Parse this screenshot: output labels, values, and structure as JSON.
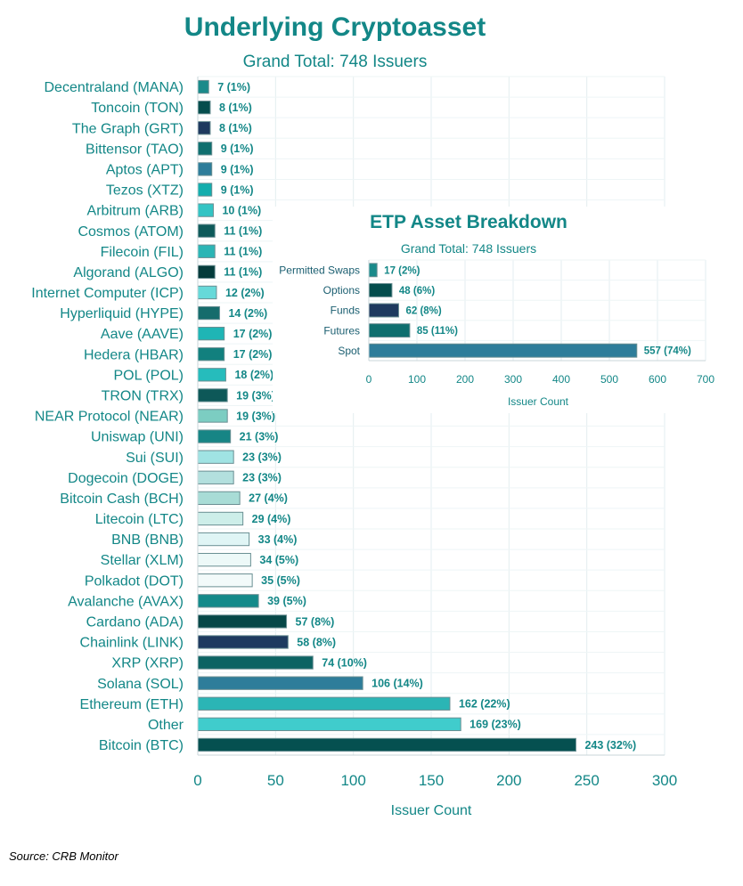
{
  "source": "Source: CRB  Monitor",
  "chart_data": [
    {
      "type": "bar",
      "orientation": "horizontal",
      "title": "Underlying Cryptoasset",
      "subtitle": "Grand Total: 748 Issuers",
      "xlabel": "Issuer Count",
      "ylabel": "",
      "xlim": [
        0,
        300
      ],
      "xticks": [
        0,
        50,
        100,
        150,
        200,
        250,
        300
      ],
      "grid": true,
      "categories": [
        "Decentraland (MANA)",
        "Toncoin (TON)",
        "The Graph (GRT)",
        "Bittensor (TAO)",
        "Aptos (APT)",
        "Tezos (XTZ)",
        "Arbitrum (ARB)",
        "Cosmos (ATOM)",
        "Filecoin (FIL)",
        "Algorand (ALGO)",
        "Internet Computer (ICP)",
        "Hyperliquid (HYPE)",
        "Aave (AAVE)",
        "Hedera (HBAR)",
        "POL (POL)",
        "TRON (TRX)",
        "NEAR Protocol (NEAR)",
        "Uniswap (UNI)",
        "Sui (SUI)",
        "Dogecoin (DOGE)",
        "Bitcoin Cash (BCH)",
        "Litecoin (LTC)",
        "BNB (BNB)",
        "Stellar (XLM)",
        "Polkadot (DOT)",
        "Avalanche (AVAX)",
        "Cardano (ADA)",
        "Chainlink (LINK)",
        "XRP (XRP)",
        "Solana (SOL)",
        "Ethereum (ETH)",
        "Other",
        "Bitcoin (BTC)"
      ],
      "values": [
        7,
        8,
        8,
        9,
        9,
        9,
        10,
        11,
        11,
        11,
        12,
        14,
        17,
        17,
        18,
        19,
        19,
        21,
        23,
        23,
        27,
        29,
        33,
        34,
        35,
        39,
        57,
        58,
        74,
        106,
        162,
        169,
        243
      ],
      "data_labels": [
        "7 (1%)",
        "8 (1%)",
        "8 (1%)",
        "9 (1%)",
        "9 (1%)",
        "9 (1%)",
        "10 (1%)",
        "11 (1%)",
        "11 (1%)",
        "11 (1%)",
        "12 (2%)",
        "14 (2%)",
        "17 (2%)",
        "17 (2%)",
        "18 (2%)",
        "19 (3%)",
        "19 (3%)",
        "21 (3%)",
        "23 (3%)",
        "23 (3%)",
        "27 (4%)",
        "29 (4%)",
        "33 (4%)",
        "34 (5%)",
        "35 (5%)",
        "39 (5%)",
        "57 (8%)",
        "58 (8%)",
        "74 (10%)",
        "106 (14%)",
        "162 (22%)",
        "169 (23%)",
        "243 (32%)"
      ],
      "colors": [
        "#1a8a8a",
        "#044d4d",
        "#1e3a5f",
        "#0f6f6f",
        "#2e7d9a",
        "#13adad",
        "#33c4c4",
        "#0e5a5a",
        "#2bb5b5",
        "#043b3b",
        "#66d9d9",
        "#166c6c",
        "#1fb5b5",
        "#12807e",
        "#26bcbc",
        "#0d5858",
        "#7ccdc2",
        "#178585",
        "#a0e3e3",
        "#b3e0de",
        "#a8dcd6",
        "#cdeee9",
        "#e0f5f5",
        "#edf9f8",
        "#f2fafa",
        "#148a8a",
        "#064747",
        "#1e3a5f",
        "#0c6363",
        "#2e7d9a",
        "#2bb5b5",
        "#40cccc",
        "#055050"
      ]
    },
    {
      "type": "bar",
      "orientation": "horizontal",
      "title": "ETP Asset Breakdown",
      "subtitle": "Grand Total: 748 Issuers",
      "xlabel": "Issuer Count",
      "ylabel": "",
      "xlim": [
        0,
        700
      ],
      "xticks": [
        0,
        100,
        200,
        300,
        400,
        500,
        600,
        700
      ],
      "grid": true,
      "categories": [
        "Permitted Swaps",
        "Options",
        "Funds",
        "Futures",
        "Spot"
      ],
      "values": [
        17,
        48,
        62,
        85,
        557
      ],
      "data_labels": [
        "17 (2%)",
        "48 (6%)",
        "62 (8%)",
        "85 (11%)",
        "557 (74%)"
      ],
      "colors": [
        "#1a8a8a",
        "#044d4d",
        "#1e3a5f",
        "#0f6f6f",
        "#2e7d9a"
      ]
    }
  ]
}
